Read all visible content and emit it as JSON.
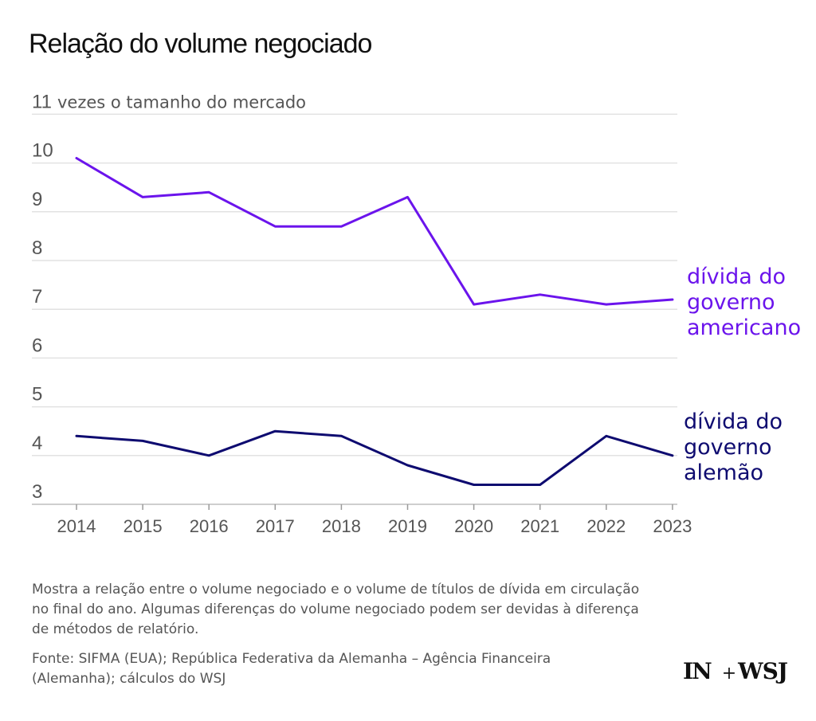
{
  "header": {
    "title": "Relação do volume negociado"
  },
  "chart_data": {
    "type": "line",
    "title": "Relação do volume negociado",
    "ylabel": "vezes o tamanho do mercado",
    "ylabel_full": "11 vezes o tamanho do mercado",
    "xlabel": "",
    "categories": [
      "2014",
      "2015",
      "2016",
      "2017",
      "2018",
      "2019",
      "2020",
      "2021",
      "2022",
      "2023"
    ],
    "ylim": [
      3,
      11
    ],
    "yticks": [
      "3",
      "4",
      "5",
      "6",
      "7",
      "8",
      "9",
      "10"
    ],
    "grid": true,
    "series": [
      {
        "name": "dívida do governo americano",
        "label_lines": [
          "dívida do",
          "governo",
          "americano"
        ],
        "color": "#6b14ec",
        "values": [
          10.1,
          9.3,
          9.4,
          8.7,
          8.7,
          9.3,
          7.1,
          7.3,
          7.1,
          7.2
        ]
      },
      {
        "name": "dívida do governo alemão",
        "label_lines": [
          "dívida do",
          "governo",
          "alemão"
        ],
        "color": "#0e0b70",
        "values": [
          4.4,
          4.3,
          4.0,
          4.5,
          4.4,
          3.8,
          3.4,
          3.4,
          4.4,
          4.0
        ]
      }
    ]
  },
  "footer": {
    "note": "Mostra a relação entre o volume negociado e o volume de títulos de dívida em circulação no final do ano. Algumas diferenças do volume negociado podem ser devidas à diferença de métodos de relatório.",
    "source": "Fonte: SIFMA (EUA); República Federativa da Alemanha – Agência Financeira (Alemanha); cálculos do WSJ",
    "logo_in": "IN",
    "logo_plus": "+",
    "logo_wsj": "WSJ"
  }
}
